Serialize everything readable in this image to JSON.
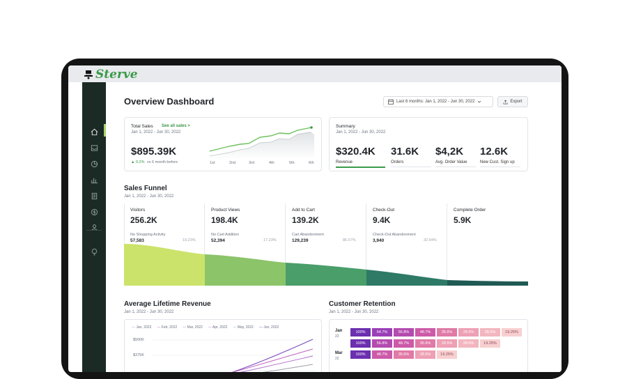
{
  "app": {
    "name": "Sterve"
  },
  "colors": {
    "brand": "#3a9a48",
    "sidebar": "#1b2a25",
    "accent": "#a8d36c"
  },
  "sidebar": {
    "items": [
      {
        "icon": "home-icon"
      },
      {
        "icon": "inbox-icon"
      },
      {
        "icon": "pie-chart-icon"
      },
      {
        "icon": "bar-chart-icon"
      },
      {
        "icon": "document-icon"
      },
      {
        "icon": "dollar-icon"
      },
      {
        "icon": "user-icon"
      },
      {
        "icon": "lightbulb-icon"
      }
    ]
  },
  "header": {
    "title": "Overview Dashboard",
    "date_range": "Last 6 months: Jan 1, 2022 - Jun 30, 2022",
    "export_label": "Export"
  },
  "total_sales": {
    "title": "Total Sales",
    "link": "See all sales >",
    "dates": "Jan 1, 2022 - Jun 30, 2022",
    "value": "$895.39K",
    "change": "▲ 9.2%",
    "change_note": "vs 6 month before",
    "x_labels": [
      "1st",
      "2nd",
      "3rd",
      "4th",
      "5th",
      "6th"
    ]
  },
  "summary": {
    "title": "Summary",
    "dates": "Jan 1, 2022 - Jun 30, 2022",
    "metrics": [
      {
        "value": "$320.4K",
        "label": "Revenue"
      },
      {
        "value": "31.6K",
        "label": "Orders"
      },
      {
        "value": "$4,2K",
        "label": "Avg. Order Value"
      },
      {
        "value": "12.6K",
        "label": "New Cust. Sign up"
      }
    ]
  },
  "funnel": {
    "title": "Sales Funnel",
    "dates": "Jan 1, 2022 - Jun 30, 2022",
    "stages": [
      {
        "name": "Visitors",
        "value": "256.2K",
        "drop_label": "No Shopping Activity",
        "drop_value": "57,583",
        "drop_pct": "19.23%",
        "color": "#cbe36a"
      },
      {
        "name": "Product Views",
        "value": "198.4K",
        "drop_label": "No Cart Addition",
        "drop_value": "52,394",
        "drop_pct": "17.23%",
        "color": "#8cc46a"
      },
      {
        "name": "Add to Cart",
        "value": "139.2K",
        "drop_label": "Cart Abandonment",
        "drop_value": "129,239",
        "drop_pct": "86.57%",
        "color": "#4a9e6a"
      },
      {
        "name": "Check-Out",
        "value": "9.4K",
        "drop_label": "Check-Out Abandonment",
        "drop_value": "3,940",
        "drop_pct": "32.54%",
        "color": "#2e7a66"
      },
      {
        "name": "Complete Order",
        "value": "5.9K",
        "drop_label": "",
        "drop_value": "",
        "drop_pct": "",
        "color": "#1f5a54"
      }
    ]
  },
  "lifetime": {
    "title": "Average Lifetime Revenue",
    "dates": "Jan 1, 2022 - Jun 30, 2022",
    "legend": [
      {
        "name": "Jan, 2022",
        "color": "#9aa0a6"
      },
      {
        "name": "Feb, 2022",
        "color": "#c060c0"
      },
      {
        "name": "Mar, 2022",
        "color": "#8a8f96"
      },
      {
        "name": "Apr, 2022",
        "color": "#b070d0"
      },
      {
        "name": "May, 2022",
        "color": "#9a9fa5"
      },
      {
        "name": "Jun, 2022",
        "color": "#7a4ac0"
      }
    ],
    "y_labels": [
      "$500K",
      "$375K"
    ]
  },
  "retention": {
    "title": "Customer Retention",
    "dates": "Jan 1, 2022 - Jun 30, 2022",
    "rows": [
      {
        "month": "Jan",
        "year": "22",
        "cells": [
          "100%",
          "64.7%",
          "56.8%",
          "48.7%",
          "35.6%",
          "28.5%",
          "28.5%",
          "19.25%"
        ]
      },
      {
        "month": "",
        "year": "",
        "cells": [
          "100%",
          "56.8%",
          "48.7%",
          "35.6%",
          "28.5%",
          "28.5%",
          "19.25%"
        ]
      },
      {
        "month": "Mar",
        "year": "22",
        "cells": [
          "100%",
          "48.7%",
          "35.6%",
          "28.5%",
          "19.25%"
        ]
      }
    ]
  }
}
